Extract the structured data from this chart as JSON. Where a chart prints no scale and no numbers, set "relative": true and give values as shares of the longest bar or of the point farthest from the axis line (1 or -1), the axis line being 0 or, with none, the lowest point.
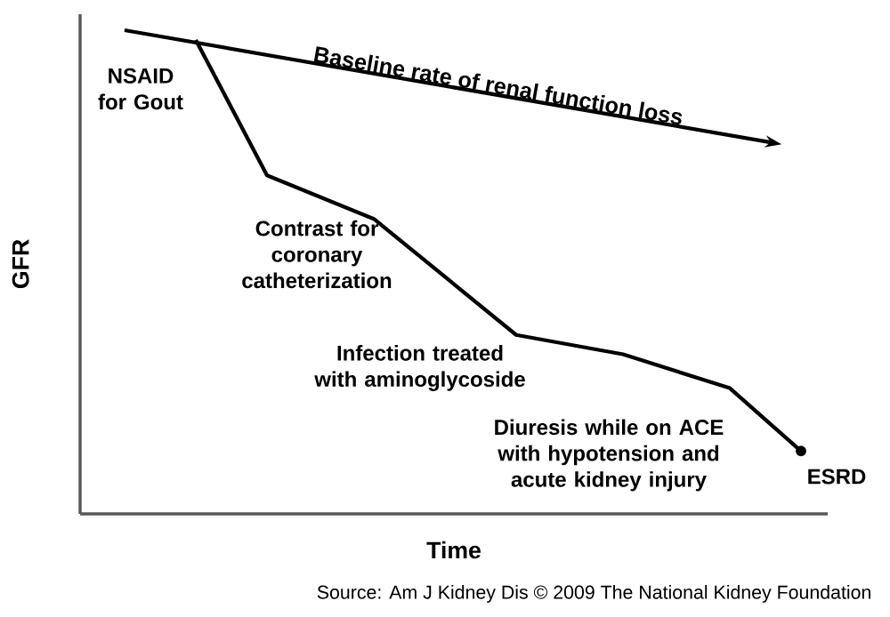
{
  "chart_data": {
    "type": "line",
    "relative": true,
    "xlabel": "Time",
    "ylabel": "GFR",
    "categories": [
      null,
      null,
      null,
      null,
      null,
      null,
      null,
      null,
      null,
      null,
      null,
      null,
      null,
      null,
      null,
      null,
      null,
      null,
      null,
      null,
      null
    ],
    "series": [
      {
        "name": "Baseline rate of renal function loss",
        "color": "#000000",
        "values": [
          null,
          1,
          null,
          null,
          null,
          null,
          null,
          null,
          null,
          null,
          null,
          null,
          null,
          null,
          null,
          null,
          null,
          null,
          null,
          0.77,
          null
        ]
      },
      {
        "color": "#000000",
        "values": [
          null,
          null,
          null,
          0.98,
          null,
          0.7,
          null,
          null,
          0.61,
          null,
          null,
          null,
          0.37,
          null,
          null,
          0.33,
          null,
          null,
          0.26,
          null,
          0.13
        ]
      }
    ],
    "annotations": [
      "NSAID for Gout",
      "Contrast for coronary catheterization",
      "Infection treated with aminoglycoside",
      "Diuresis while on ACE with hypotension and acute kidney injury",
      "ESRD",
      "Source: Am J Kidney Dis © 2009 The National Kidney Foundation"
    ]
  }
}
